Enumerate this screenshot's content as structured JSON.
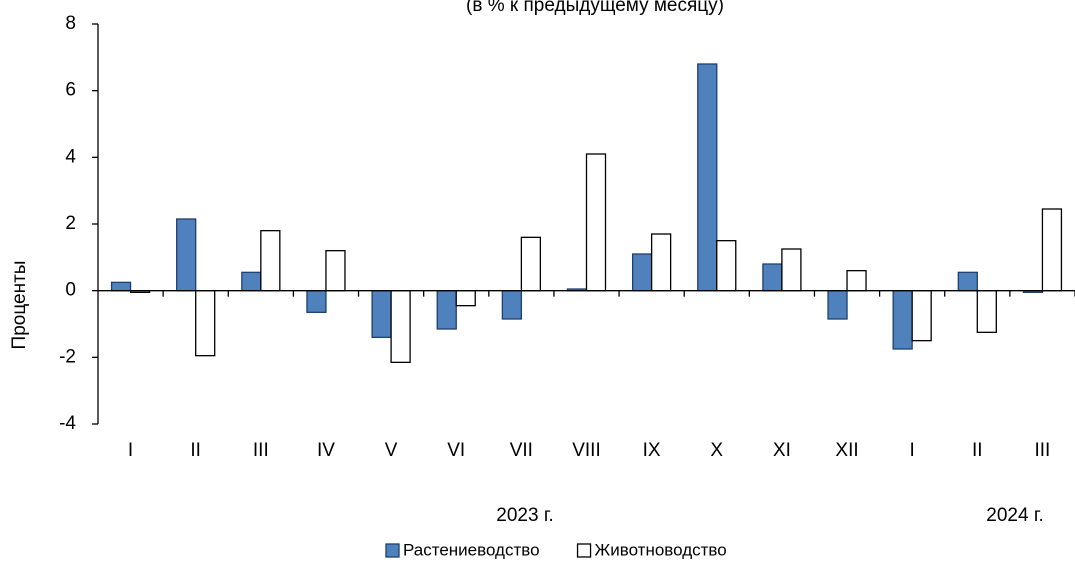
{
  "chart_data": {
    "type": "bar",
    "title": "(в % к предыдущему месяцу)",
    "y_label": "Проценты",
    "categories": [
      "I",
      "II",
      "III",
      "IV",
      "V",
      "VI",
      "VII",
      "VIII",
      "IX",
      "X",
      "XI",
      "XII",
      "I",
      "II",
      "III"
    ],
    "series": [
      {
        "name": "Растениеводство",
        "color": "#4f81bd",
        "values": [
          0.25,
          2.15,
          0.55,
          -0.65,
          -1.4,
          -1.15,
          -0.85,
          0.05,
          1.1,
          6.8,
          0.8,
          -0.85,
          -1.75,
          0.55,
          -0.05
        ]
      },
      {
        "name": "Животноводство",
        "color": "#ffffff",
        "values": [
          -0.05,
          -1.95,
          1.8,
          1.2,
          -2.15,
          -0.45,
          1.6,
          4.1,
          1.7,
          1.5,
          1.25,
          0.6,
          -1.5,
          -1.25,
          2.45
        ]
      }
    ],
    "year_labels": [
      "2023 г.",
      "2024 г."
    ],
    "ylim": [
      -4,
      8
    ],
    "yticks": [
      -4,
      -2,
      0,
      2,
      4,
      6,
      8
    ]
  }
}
